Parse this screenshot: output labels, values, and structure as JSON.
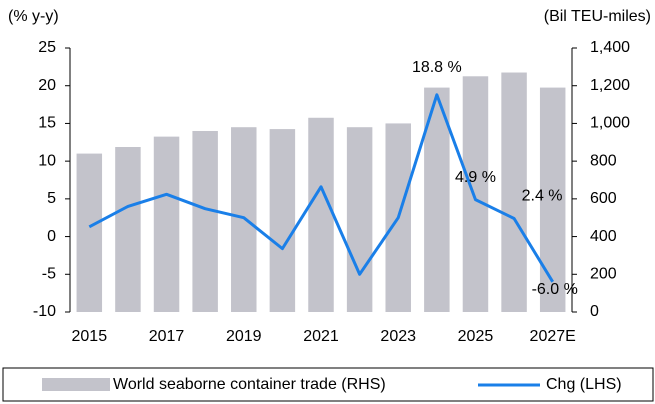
{
  "chart_data": {
    "type": "bar_line",
    "ylabel": "(% y-y)",
    "y2label": "(Bil TEU-miles)",
    "categories": [
      "2015",
      null,
      "2017",
      null,
      "2019",
      null,
      "2021",
      null,
      "2023",
      null,
      "2025",
      null,
      "2027E"
    ],
    "series": [
      {
        "name": "World seaborne container trade (RHS)",
        "type": "bar",
        "axis": "y2",
        "color": "#c3c3cb",
        "values": [
          840,
          875,
          930,
          960,
          980,
          970,
          1030,
          980,
          1000,
          1190,
          1250,
          1270,
          1190
        ]
      },
      {
        "name": "Chg (LHS)",
        "type": "line",
        "axis": "y",
        "color": "#1a7fe8",
        "values": [
          1.3,
          4.0,
          5.6,
          3.7,
          2.5,
          -1.6,
          6.6,
          -5.0,
          2.5,
          18.8,
          4.9,
          2.4,
          -6.0
        ],
        "value_labels": [
          null,
          null,
          null,
          null,
          null,
          null,
          null,
          null,
          null,
          "18.8 %",
          "4.9 %",
          "2.4 %",
          "-6.0 %"
        ]
      }
    ],
    "ylim": [
      -10,
      25
    ],
    "yticks": [
      -10,
      -5,
      0,
      5,
      10,
      15,
      20,
      25
    ],
    "y2lim": [
      0,
      1400
    ],
    "y2ticks": [
      0,
      200,
      400,
      600,
      800,
      {
        "value": 1000,
        "label": "1,000"
      },
      {
        "value": 1200,
        "label": "1,200"
      },
      {
        "value": 1400,
        "label": "1,400"
      }
    ],
    "legend": "bottom"
  }
}
